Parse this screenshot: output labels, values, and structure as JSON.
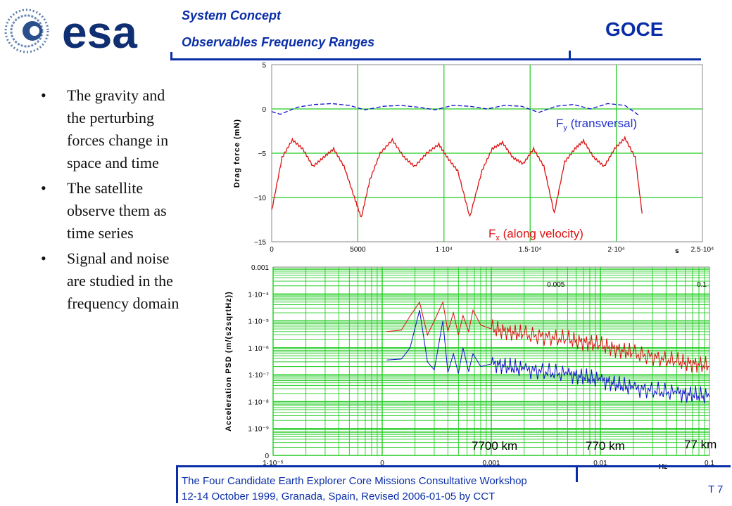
{
  "logo": {
    "text": "esa",
    "icon": "esa-swirl-logo"
  },
  "header": {
    "title": "System Concept",
    "subtitle": "Observables Frequency Ranges",
    "mission": "GOCE"
  },
  "bullets": [
    "The gravity and the perturbing forces change in space and time",
    "The satellite observe them as time series",
    "Signal and noise are studied in the frequency domain"
  ],
  "colors": {
    "accent": "#0a2ea8",
    "grid": "#22cc22",
    "series_red": "#dd1111",
    "series_blue": "#1111cc"
  },
  "chart_data": [
    {
      "type": "line",
      "ylabel": "Drag force (mN)",
      "xunit": "s",
      "xlim": [
        0,
        25000
      ],
      "ylim": [
        -15,
        5
      ],
      "x_ticks": [
        "0",
        "5000",
        "1·10⁴",
        "1.5·10⁴",
        "2·10⁴",
        "2.5·10⁴"
      ],
      "y_ticks": [
        "5",
        "0",
        "−5",
        "−10",
        "−15"
      ],
      "grid": true,
      "series": [
        {
          "name": "Fy (transversal)",
          "label_main": "F",
          "label_sub": "y",
          "label_rest": " (transversal)",
          "color": "#1111cc",
          "style": "dashed",
          "x": [
            0,
            500,
            1500,
            2500,
            3500,
            4500,
            5400,
            6500,
            7500,
            8500,
            9500,
            10500,
            11500,
            12500,
            13500,
            14500,
            15500,
            16500,
            17500,
            18500,
            19500,
            20500,
            21300
          ],
          "y": [
            -0.3,
            -0.6,
            0.2,
            0.5,
            0.6,
            0.4,
            -0.1,
            0.3,
            0.4,
            0.2,
            -0.1,
            0.4,
            0.3,
            0.0,
            0.4,
            0.3,
            -0.4,
            0.3,
            0.5,
            0.0,
            0.6,
            0.4,
            -0.7
          ]
        },
        {
          "name": "Fx (along velocity)",
          "label_main": "F",
          "label_sub": "x",
          "label_rest": " (along velocity)",
          "color": "#dd1111",
          "style": "solid",
          "x": [
            0,
            600,
            1200,
            1800,
            2400,
            3000,
            3600,
            4200,
            4800,
            5200,
            5700,
            6300,
            7000,
            7700,
            8300,
            9000,
            9700,
            10200,
            10800,
            11500,
            12200,
            12800,
            13400,
            14000,
            14600,
            15200,
            15800,
            16400,
            17000,
            17600,
            18100,
            18700,
            19300,
            19900,
            20500,
            21100,
            21500
          ],
          "y": [
            -11.5,
            -5.5,
            -3.5,
            -4.5,
            -6.5,
            -5.5,
            -4.5,
            -6.5,
            -10.0,
            -12.3,
            -8.0,
            -5.0,
            -3.5,
            -5.5,
            -6.5,
            -5.0,
            -4.0,
            -5.5,
            -7.0,
            -12.2,
            -7.0,
            -4.5,
            -3.8,
            -5.5,
            -6.2,
            -4.5,
            -6.5,
            -11.8,
            -6.0,
            -4.5,
            -3.6,
            -5.5,
            -6.5,
            -4.5,
            -3.3,
            -5.5,
            -11.8
          ]
        }
      ]
    },
    {
      "type": "line",
      "ylabel": "Acceleration  PSD (m/(s2sqrtHz))",
      "xunit": "Hz",
      "xscale": "log",
      "yscale": "log",
      "xlim": [
        1e-05,
        0.1
      ],
      "ylim": [
        1e-10,
        0.001
      ],
      "x_ticks": [
        "1·10⁻⁵",
        "0",
        "0.001",
        "0.01",
        "0.1"
      ],
      "y_ticks": [
        "0.001",
        "1·10⁻⁴",
        "1·10⁻⁵",
        "1·10⁻⁶",
        "1·10⁻⁷",
        "1·10⁻⁸",
        "1·10⁻⁹",
        "0"
      ],
      "top_ticks": [
        "0.005",
        "0.1"
      ],
      "grid": true,
      "annotations": [
        "7700 km",
        "770 km",
        "77 km"
      ],
      "series": [
        {
          "color": "#dd1111",
          "x": [
            0.00011,
            0.00015,
            0.00018,
            0.00022,
            0.00026,
            0.0003,
            0.00036,
            0.0004,
            0.00045,
            0.0005,
            0.00055,
            0.00062,
            0.00068,
            0.0008,
            0.001,
            0.002,
            0.005,
            0.01,
            0.02,
            0.05,
            0.1
          ],
          "y": [
            4e-06,
            4.5e-06,
            1.5e-05,
            5e-05,
            3e-06,
            1e-05,
            5e-05,
            4e-06,
            2e-05,
            3e-06,
            1.6e-05,
            4e-06,
            2.5e-05,
            7e-06,
            5e-06,
            3e-06,
            2e-06,
            1.2e-06,
            6e-07,
            3e-07,
            2e-07
          ]
        },
        {
          "color": "#1111cc",
          "x": [
            0.00011,
            0.00015,
            0.00018,
            0.00022,
            0.00026,
            0.0003,
            0.00036,
            0.0004,
            0.00045,
            0.0005,
            0.00055,
            0.00062,
            0.00068,
            0.0008,
            0.001,
            0.002,
            0.005,
            0.01,
            0.02,
            0.05,
            0.1
          ],
          "y": [
            3.5e-07,
            3.8e-07,
            1e-06,
            2.5e-05,
            3e-07,
            1.5e-07,
            1e-05,
            1.2e-07,
            6e-07,
            1.1e-07,
            1e-06,
            1.3e-07,
            6e-07,
            2e-07,
            2.5e-07,
            1.5e-07,
            1e-07,
            6e-08,
            3e-08,
            2e-08,
            1.5e-08
          ]
        }
      ]
    }
  ],
  "footer": {
    "line1": "The Four Candidate Earth Explorer Core Missions Consultative Workshop",
    "line2": "12-14 October 1999, Granada, Spain, Revised 2006-01-05 by CCT",
    "page": "T 7"
  }
}
